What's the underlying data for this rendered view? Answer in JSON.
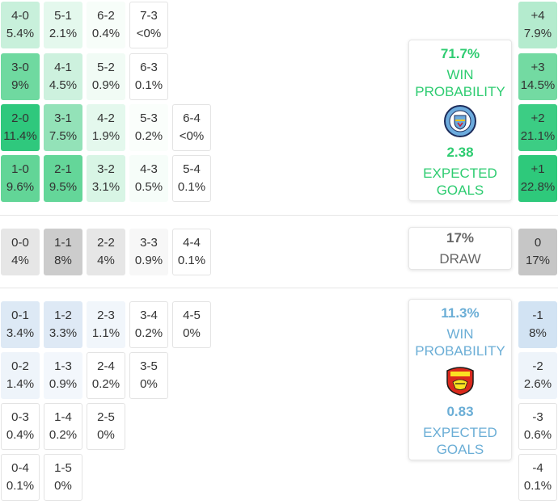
{
  "home": {
    "color": "#2ecc71",
    "win_pct": "71.7%",
    "win_label": "WIN\nPROBABILITY",
    "xg": "2.38",
    "xg_label": "EXPECTED\nGOALS",
    "crest": "man-city-crest",
    "rows": [
      [
        {
          "score": "4-0",
          "pct": "5.4%",
          "shade": "#c8f0db"
        },
        {
          "score": "5-1",
          "pct": "2.1%",
          "shade": "#e4f8ed"
        },
        {
          "score": "6-2",
          "pct": "0.4%",
          "shade": "#f7fdf9"
        },
        {
          "score": "7-3",
          "pct": "<0%",
          "shade": null
        }
      ],
      [
        {
          "score": "3-0",
          "pct": "9%",
          "shade": "#6fd9a0"
        },
        {
          "score": "4-1",
          "pct": "4.5%",
          "shade": "#cdf1de"
        },
        {
          "score": "5-2",
          "pct": "0.9%",
          "shade": "#f1fbf5"
        },
        {
          "score": "6-3",
          "pct": "0.1%",
          "shade": null
        }
      ],
      [
        {
          "score": "2-0",
          "pct": "11.4%",
          "shade": "#2fc87d"
        },
        {
          "score": "3-1",
          "pct": "7.5%",
          "shade": "#93e2b8"
        },
        {
          "score": "4-2",
          "pct": "1.9%",
          "shade": "#e4f8ed"
        },
        {
          "score": "5-3",
          "pct": "0.2%",
          "shade": "#fafefb"
        },
        {
          "score": "6-4",
          "pct": "<0%",
          "shade": null
        }
      ],
      [
        {
          "score": "1-0",
          "pct": "9.6%",
          "shade": "#62d597"
        },
        {
          "score": "2-1",
          "pct": "9.5%",
          "shade": "#64d699"
        },
        {
          "score": "3-2",
          "pct": "3.1%",
          "shade": "#d8f5e5"
        },
        {
          "score": "4-3",
          "pct": "0.5%",
          "shade": "#f6fdf9"
        },
        {
          "score": "5-4",
          "pct": "0.1%",
          "shade": null
        }
      ]
    ],
    "margins": [
      {
        "label": "+4",
        "pct": "7.9%",
        "shade": "#b4ebce"
      },
      {
        "label": "+3",
        "pct": "14.5%",
        "shade": "#73daa2"
      },
      {
        "label": "+2",
        "pct": "21.1%",
        "shade": "#3ccd84"
      },
      {
        "label": "+1",
        "pct": "22.8%",
        "shade": "#2ec97b"
      }
    ]
  },
  "draw": {
    "color": "#666666",
    "pct": "17%",
    "label": "DRAW",
    "cells": [
      {
        "score": "0-0",
        "pct": "4%",
        "shade": "#e6e6e6"
      },
      {
        "score": "1-1",
        "pct": "8%",
        "shade": "#cccccc"
      },
      {
        "score": "2-2",
        "pct": "4%",
        "shade": "#e6e6e6"
      },
      {
        "score": "3-3",
        "pct": "0.9%",
        "shade": "#f7f7f7"
      },
      {
        "score": "4-4",
        "pct": "0.1%",
        "shade": null
      }
    ],
    "margin": {
      "label": "0",
      "pct": "17%",
      "shade": "#c6c6c6"
    }
  },
  "away": {
    "color": "#6baed6",
    "win_pct": "11.3%",
    "win_label": "WIN\nPROBABILITY",
    "xg": "0.83",
    "xg_label": "EXPECTED\nGOALS",
    "crest": "man-united-crest",
    "rows": [
      [
        {
          "score": "0-1",
          "pct": "3.4%",
          "shade": "#dde9f5"
        },
        {
          "score": "1-2",
          "pct": "3.3%",
          "shade": "#dee9f5"
        },
        {
          "score": "2-3",
          "pct": "1.1%",
          "shade": "#f1f6fb"
        },
        {
          "score": "3-4",
          "pct": "0.2%",
          "shade": null
        },
        {
          "score": "4-5",
          "pct": "0%",
          "shade": null
        }
      ],
      [
        {
          "score": "0-2",
          "pct": "1.4%",
          "shade": "#eef4fa"
        },
        {
          "score": "1-3",
          "pct": "0.9%",
          "shade": "#f3f7fc"
        },
        {
          "score": "2-4",
          "pct": "0.2%",
          "shade": null
        },
        {
          "score": "3-5",
          "pct": "0%",
          "shade": null
        }
      ],
      [
        {
          "score": "0-3",
          "pct": "0.4%",
          "shade": null
        },
        {
          "score": "1-4",
          "pct": "0.2%",
          "shade": null
        },
        {
          "score": "2-5",
          "pct": "0%",
          "shade": null
        }
      ],
      [
        {
          "score": "0-4",
          "pct": "0.1%",
          "shade": null
        },
        {
          "score": "1-5",
          "pct": "0%",
          "shade": null
        }
      ]
    ],
    "margins": [
      {
        "label": "-1",
        "pct": "8%",
        "shade": "#d2e3f3"
      },
      {
        "label": "-2",
        "pct": "2.6%",
        "shade": "#eef4fa"
      },
      {
        "label": "-3",
        "pct": "0.6%",
        "shade": null
      },
      {
        "label": "-4",
        "pct": "0.1%",
        "shade": null
      }
    ]
  }
}
